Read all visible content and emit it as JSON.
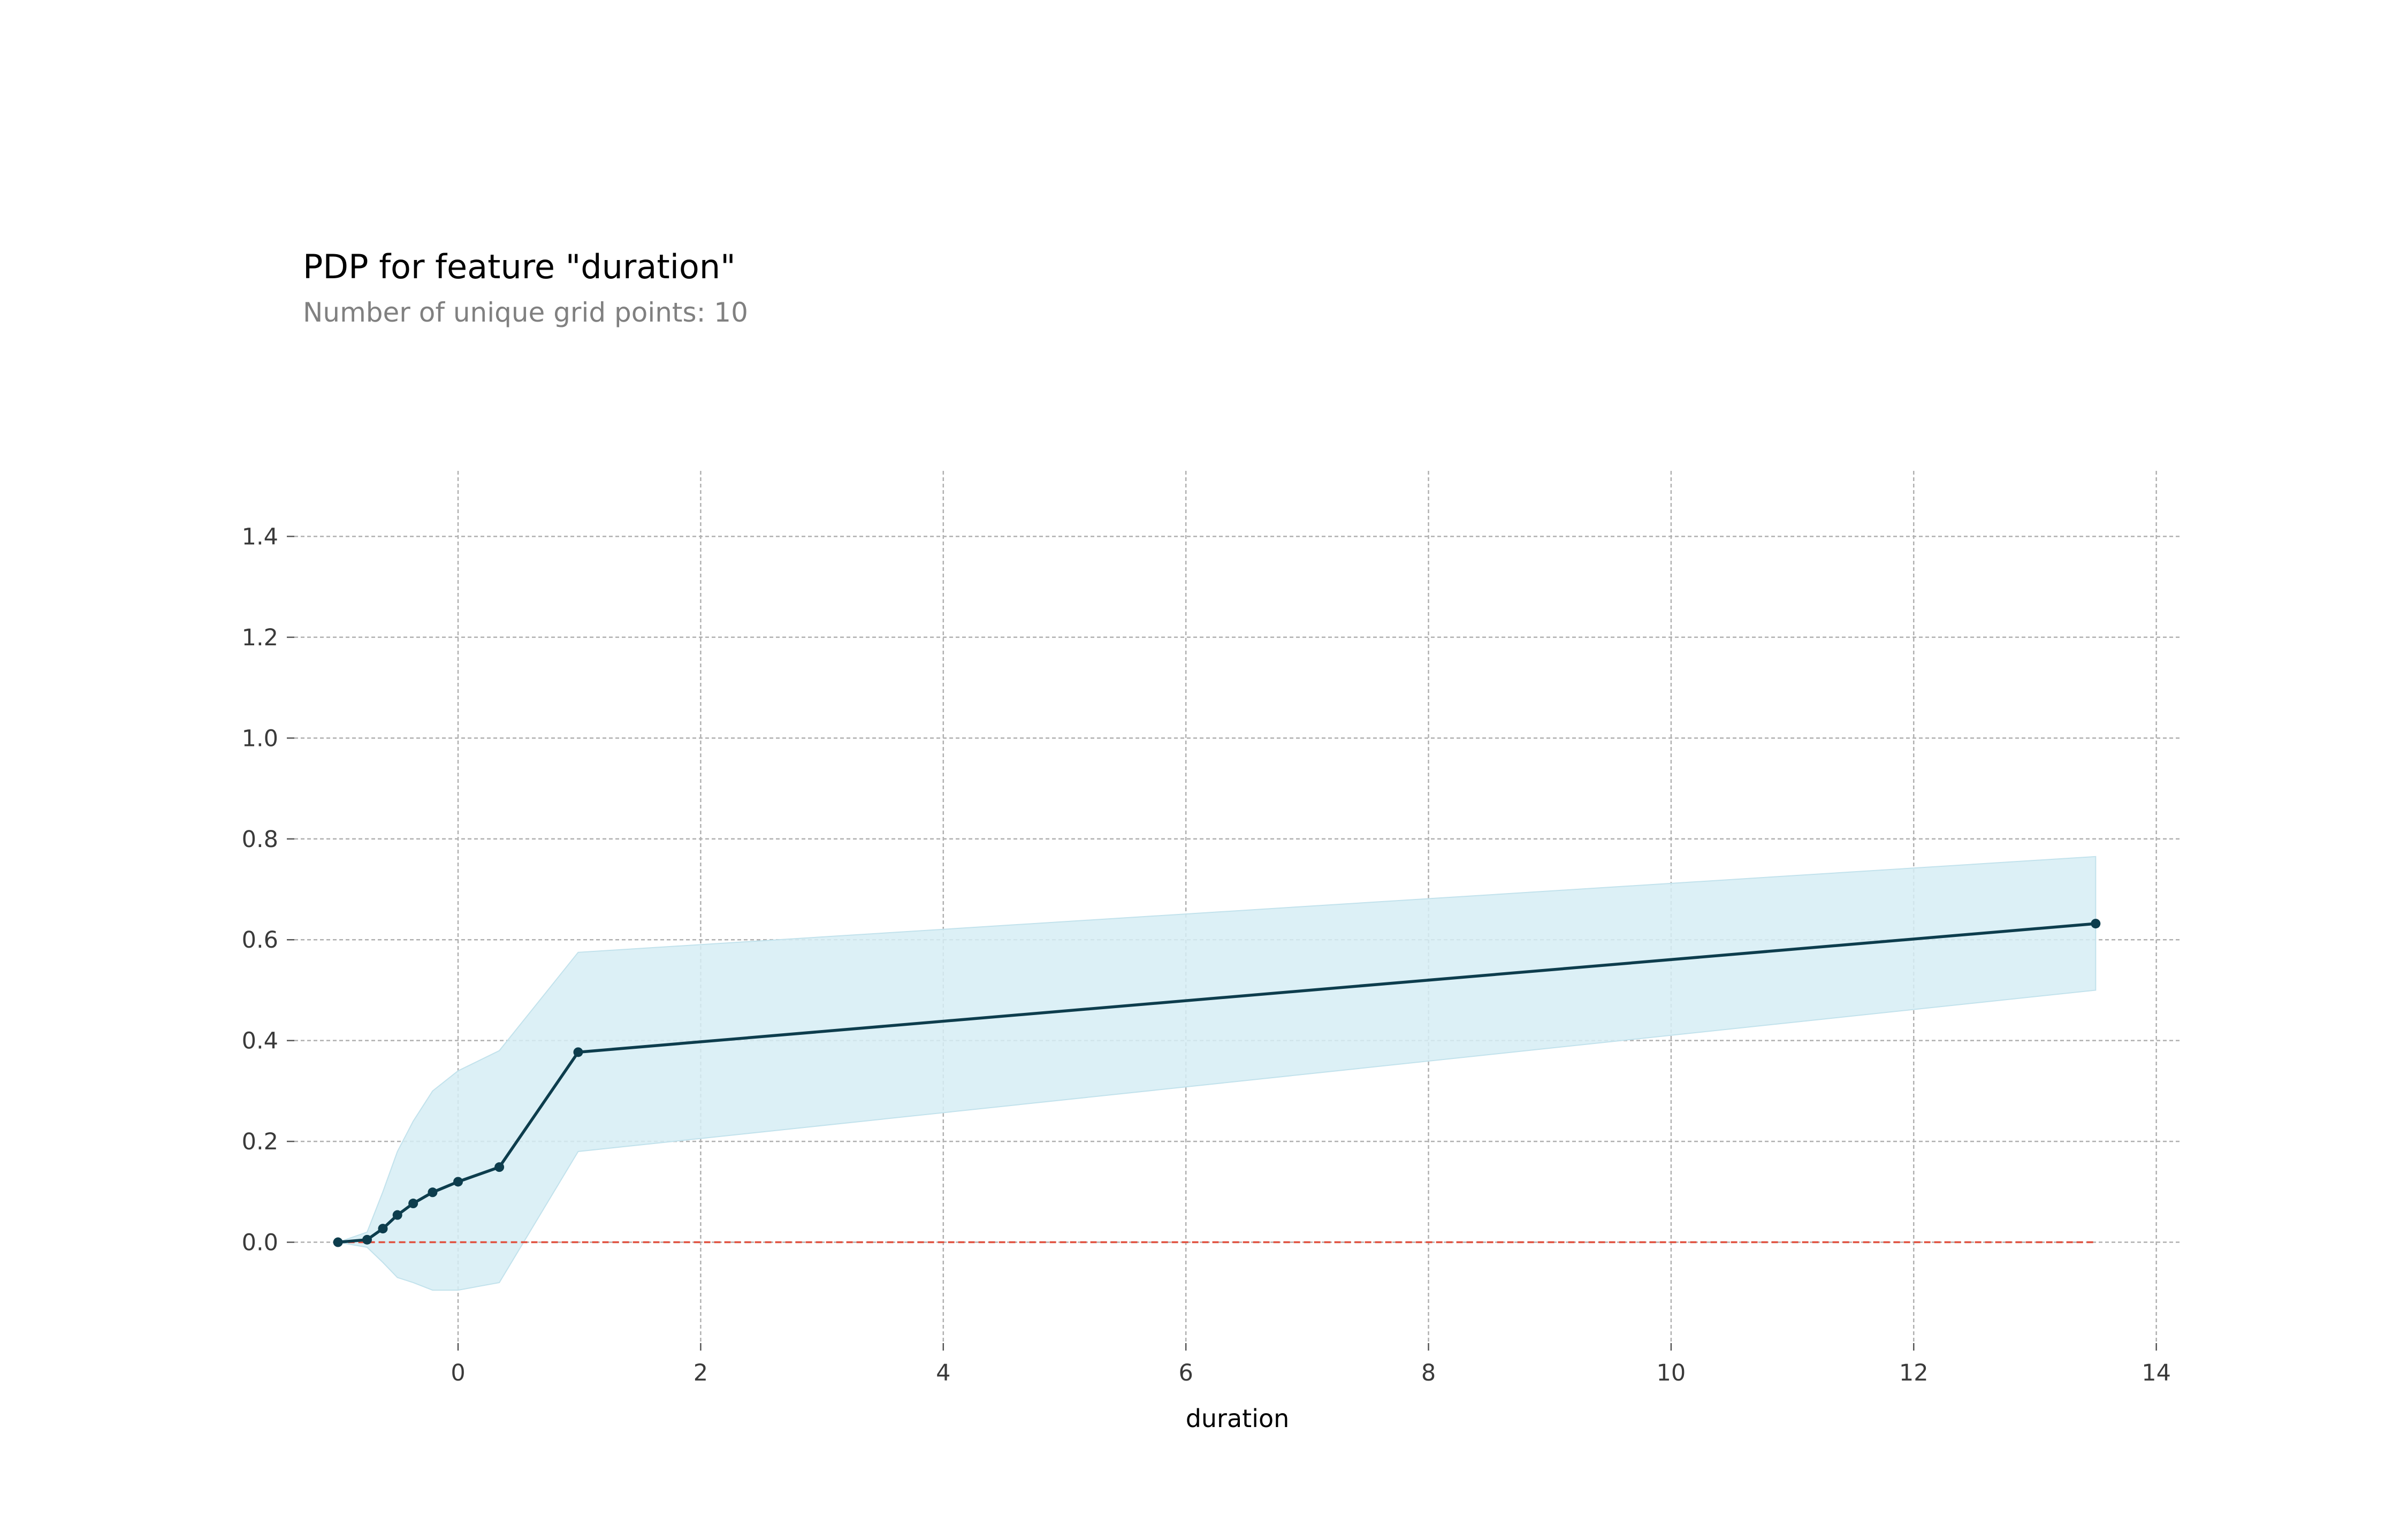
{
  "chart_data": {
    "type": "line",
    "title": "PDP for feature \"duration\"",
    "subtitle": "Number of unique grid points: 10",
    "xlabel": "duration",
    "ylabel": "",
    "xlim": [
      -1.35,
      14.2
    ],
    "ylim": [
      -0.2,
      1.53
    ],
    "xticks": [
      0,
      2,
      4,
      6,
      8,
      10,
      12,
      14
    ],
    "yticks": [
      0.0,
      0.2,
      0.4,
      0.6,
      0.8,
      1.0,
      1.2,
      1.4
    ],
    "grid": true,
    "series": [
      {
        "x": [
          -0.99,
          -0.75,
          -0.62,
          -0.5,
          -0.37,
          -0.21,
          0.0,
          0.34,
          0.99,
          13.5
        ],
        "values": [
          0.0,
          0.005,
          0.027,
          0.054,
          0.077,
          0.099,
          0.12,
          0.149,
          0.377,
          0.632
        ],
        "upper": [
          0.0,
          0.02,
          0.1,
          0.18,
          0.24,
          0.3,
          0.34,
          0.38,
          0.575,
          0.765
        ],
        "lower": [
          0.0,
          -0.01,
          -0.04,
          -0.07,
          -0.08,
          -0.095,
          -0.095,
          -0.08,
          0.18,
          0.5
        ]
      }
    ],
    "baseline": 0.0,
    "colors": {
      "line": "#0d3d4d",
      "band": "#d6edf4",
      "baseline": "#e0513f",
      "grid": "#b0b0b0"
    }
  }
}
